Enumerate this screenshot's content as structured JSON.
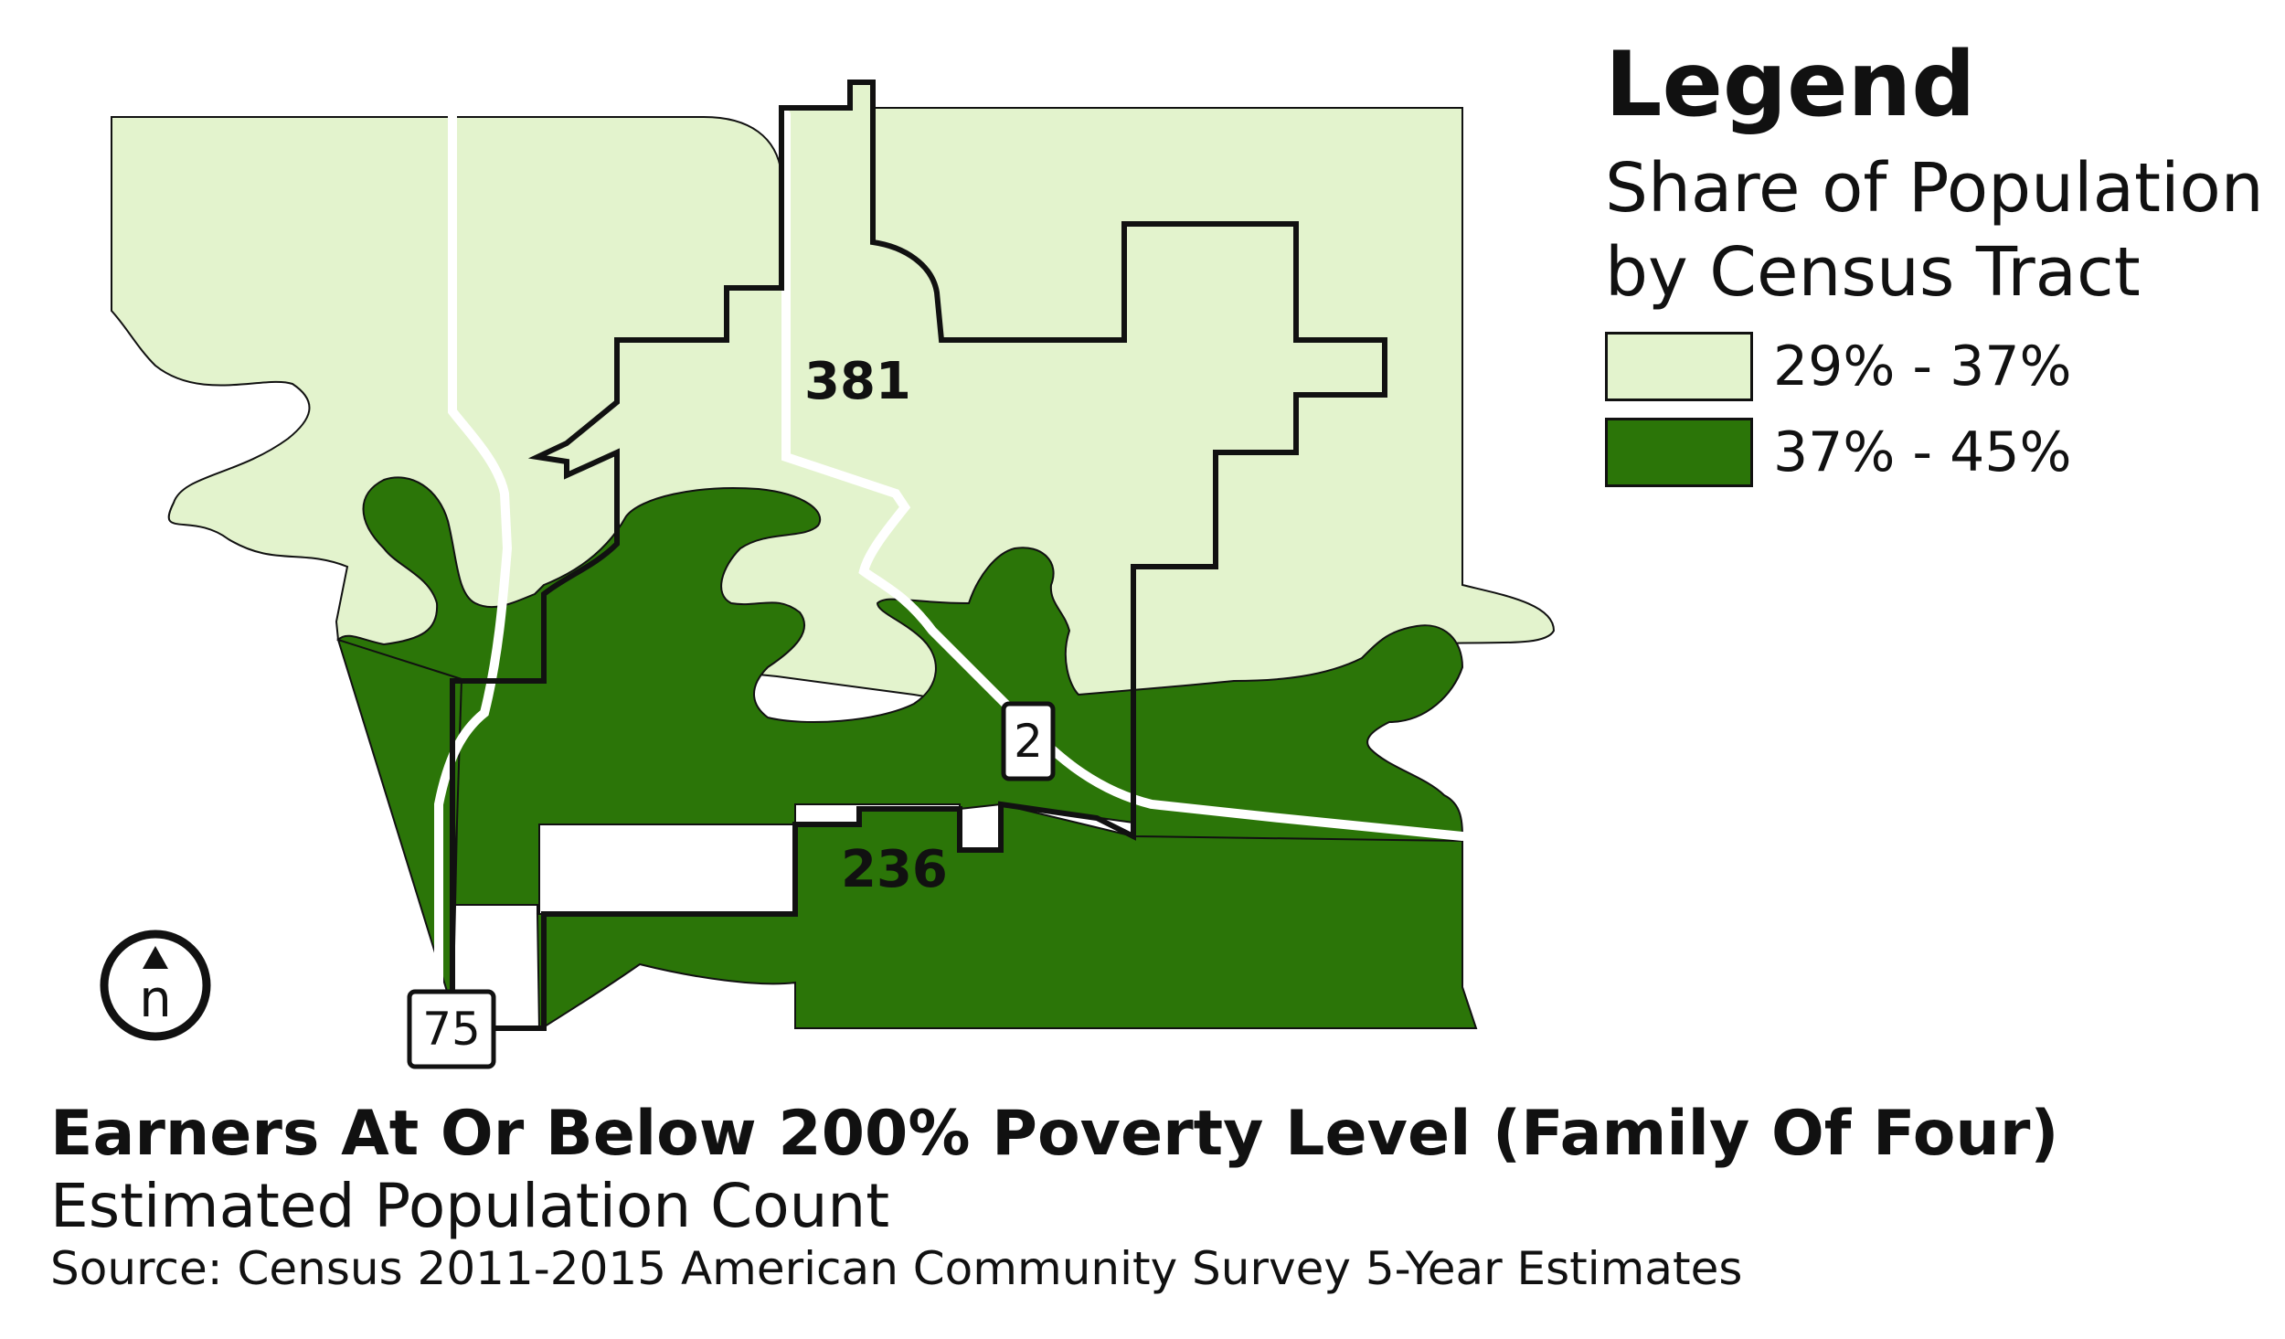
{
  "legend": {
    "title": "Legend",
    "subtitle_line1": "Share of Population",
    "subtitle_line2": "by Census Tract",
    "items": [
      {
        "label": "29% - 37%",
        "color": "#e3f3cd"
      },
      {
        "label": "37% - 45%",
        "color": "#2b7508"
      }
    ]
  },
  "map": {
    "tracts": [
      {
        "label": "381",
        "share_range": "29% - 37%"
      },
      {
        "label": "236",
        "share_range": "37% - 45%"
      }
    ],
    "road_shields": [
      {
        "label": "2"
      },
      {
        "label": "75"
      }
    ],
    "north_arrow": {
      "label": "n"
    },
    "colors": {
      "light_share": "#e3f3cd",
      "dark_share": "#2b7508",
      "boundary": "#111111",
      "road": "#ffffff"
    }
  },
  "titles": {
    "main": "Earners At Or Below 200% Poverty Level (Family Of Four)",
    "subtitle": "Estimated Population Count",
    "source": "Source: Census 2011-2015 American Community Survey 5-Year Estimates"
  }
}
